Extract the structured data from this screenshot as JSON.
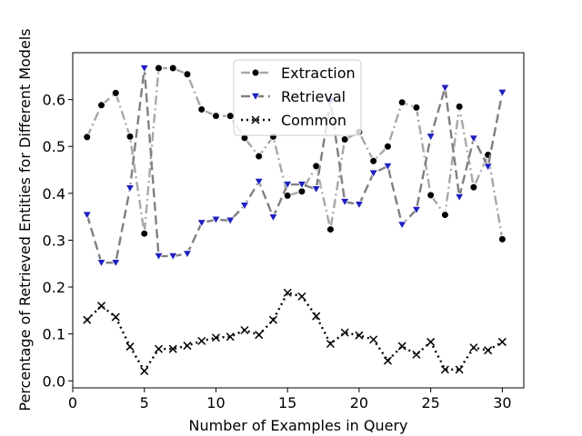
{
  "chart_data": {
    "type": "line",
    "xlabel": "Number of Examples in Query",
    "ylabel": "Percentage of Retrieved Entities for Different Models",
    "xlim": [
      0,
      31.5
    ],
    "ylim": [
      -0.015,
      0.7
    ],
    "xticks": [
      0,
      5,
      10,
      15,
      20,
      25,
      30
    ],
    "yticks": [
      0.0,
      0.1,
      0.2,
      0.3,
      0.4,
      0.5,
      0.6
    ],
    "grid": false,
    "legend_position": "top-center",
    "x": [
      1,
      2,
      3,
      4,
      5,
      6,
      7,
      8,
      9,
      10,
      11,
      12,
      13,
      14,
      15,
      16,
      17,
      18,
      19,
      20,
      21,
      22,
      23,
      24,
      25,
      26,
      27,
      28,
      29,
      30
    ],
    "series": [
      {
        "name": "Extraction",
        "line_color": "#a8a8a8",
        "line_style": "dashdot",
        "marker": "circle",
        "marker_fill": "#000000",
        "values": [
          0.52,
          0.588,
          0.614,
          0.521,
          0.314,
          0.667,
          0.667,
          0.654,
          0.579,
          0.565,
          0.565,
          0.518,
          0.479,
          0.521,
          0.395,
          0.404,
          0.458,
          0.323,
          0.515,
          0.531,
          0.469,
          0.5,
          0.594,
          0.583,
          0.396,
          0.354,
          0.585,
          0.413,
          0.482,
          0.302
        ]
      },
      {
        "name": "Retrieval",
        "line_color": "#808080",
        "line_style": "dashed",
        "marker": "triangle-down",
        "marker_fill": "#1f1fbf",
        "values": [
          0.354,
          0.252,
          0.252,
          0.411,
          0.667,
          0.266,
          0.266,
          0.271,
          0.337,
          0.344,
          0.342,
          0.374,
          0.425,
          0.349,
          0.419,
          0.419,
          0.409,
          0.598,
          0.382,
          0.376,
          0.443,
          0.458,
          0.333,
          0.365,
          0.521,
          0.625,
          0.392,
          0.517,
          0.457,
          0.615
        ]
      },
      {
        "name": "Common",
        "line_color": "#000000",
        "line_style": "dotted",
        "marker": "x",
        "marker_fill": "#000000",
        "values": [
          0.13,
          0.16,
          0.136,
          0.073,
          0.021,
          0.068,
          0.068,
          0.075,
          0.085,
          0.092,
          0.094,
          0.108,
          0.098,
          0.13,
          0.188,
          0.18,
          0.138,
          0.079,
          0.103,
          0.097,
          0.088,
          0.043,
          0.074,
          0.056,
          0.083,
          0.024,
          0.024,
          0.071,
          0.065,
          0.083
        ]
      }
    ]
  }
}
